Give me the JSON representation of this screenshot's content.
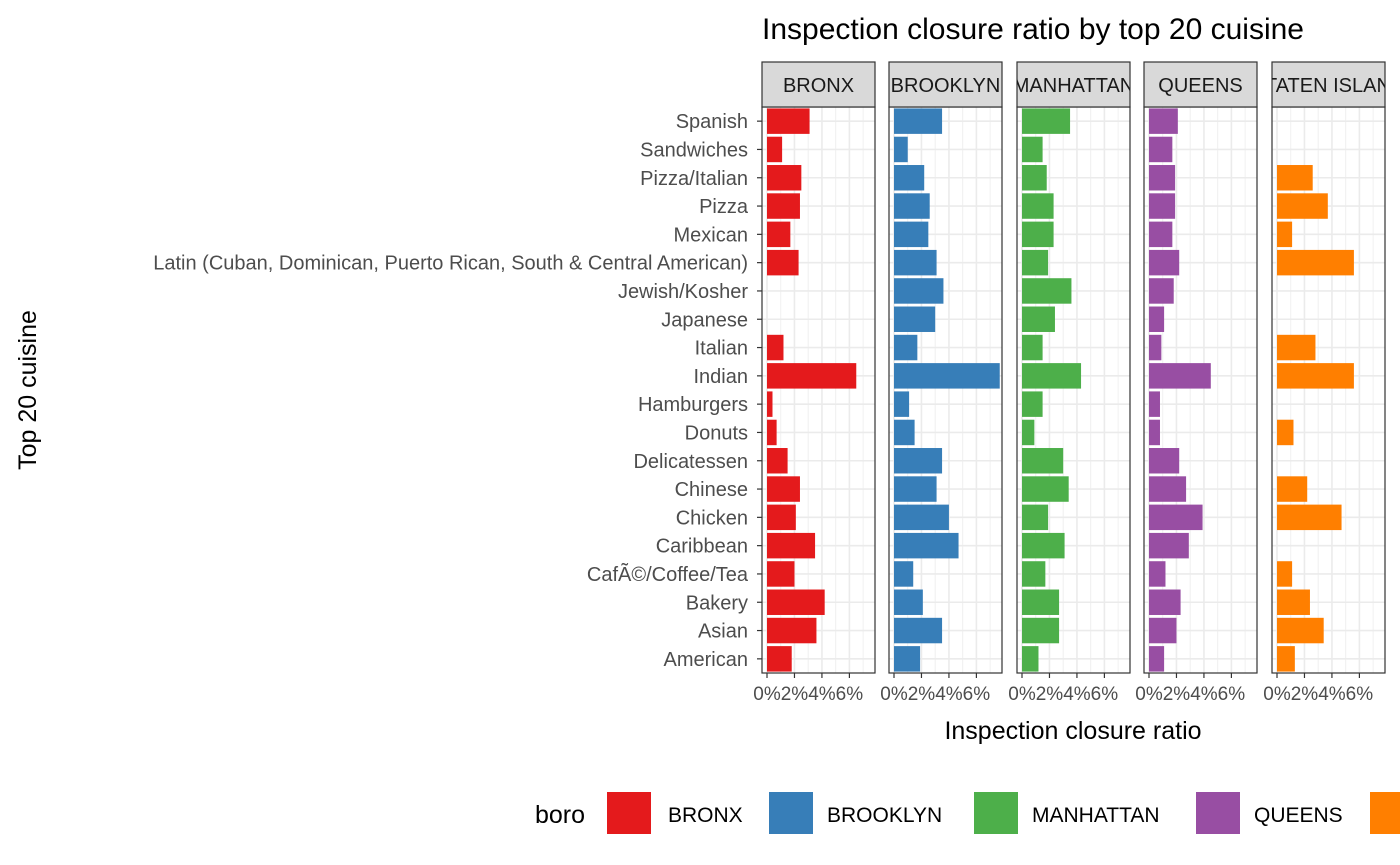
{
  "chart_data": {
    "type": "bar",
    "orientation": "horizontal",
    "title": "Inspection closure ratio by top 20 cuisine",
    "xlabel": "Inspection closure ratio",
    "ylabel": "Top 20 cuisine",
    "xlim": [
      0,
      0.075
    ],
    "x_ticks": [
      0,
      0.02,
      0.04,
      0.06
    ],
    "x_tick_labels": [
      "0%",
      "2%",
      "4%",
      "6%"
    ],
    "grid": true,
    "legend_title": "boro",
    "legend_position": "bottom",
    "categories": [
      "Spanish",
      "Sandwiches",
      "Pizza/Italian",
      "Pizza",
      "Mexican",
      "Latin (Cuban, Dominican, Puerto Rican, South & Central American)",
      "Jewish/Kosher",
      "Japanese",
      "Italian",
      "Indian",
      "Hamburgers",
      "Donuts",
      "Delicatessen",
      "Chinese",
      "Chicken",
      "Caribbean",
      "CafÃ©/Coffee/Tea",
      "Bakery",
      "Asian",
      "American"
    ],
    "panels": [
      {
        "name": "BRONX",
        "strip": "BRONX",
        "color": "#e41a1c",
        "values": [
          0.031,
          0.011,
          0.025,
          0.024,
          0.017,
          0.023,
          null,
          null,
          0.012,
          0.065,
          0.004,
          0.007,
          0.015,
          0.024,
          0.021,
          0.035,
          0.02,
          0.042,
          0.036,
          0.018
        ]
      },
      {
        "name": "BROOKLYN",
        "strip": "BROOKLYN",
        "color": "#377eb8",
        "values": [
          0.035,
          0.01,
          0.022,
          0.026,
          0.025,
          0.031,
          0.036,
          0.03,
          0.017,
          0.077,
          0.011,
          0.015,
          0.035,
          0.031,
          0.04,
          0.047,
          0.014,
          0.021,
          0.035,
          0.019
        ]
      },
      {
        "name": "MANHATTAN",
        "strip": "MANHATTAN",
        "color": "#4daf4a",
        "values": [
          0.035,
          0.015,
          0.018,
          0.023,
          0.023,
          0.019,
          0.036,
          0.024,
          0.015,
          0.043,
          0.015,
          0.009,
          0.03,
          0.034,
          0.019,
          0.031,
          0.017,
          0.027,
          0.027,
          0.012
        ]
      },
      {
        "name": "QUEENS",
        "strip": "QUEENS",
        "color": "#984ea3",
        "values": [
          0.021,
          0.017,
          0.019,
          0.019,
          0.017,
          0.022,
          0.018,
          0.011,
          0.009,
          0.045,
          0.008,
          0.008,
          0.022,
          0.027,
          0.039,
          0.029,
          0.012,
          0.023,
          0.02,
          0.011
        ]
      },
      {
        "name": "STATEN ISLAND",
        "strip": "STATEN ISLAND",
        "color": "#ff7f00",
        "values": [
          null,
          null,
          0.026,
          0.037,
          0.011,
          0.056,
          null,
          null,
          0.028,
          0.056,
          null,
          0.012,
          null,
          0.022,
          0.047,
          null,
          0.011,
          0.024,
          0.034,
          0.013
        ]
      }
    ]
  }
}
